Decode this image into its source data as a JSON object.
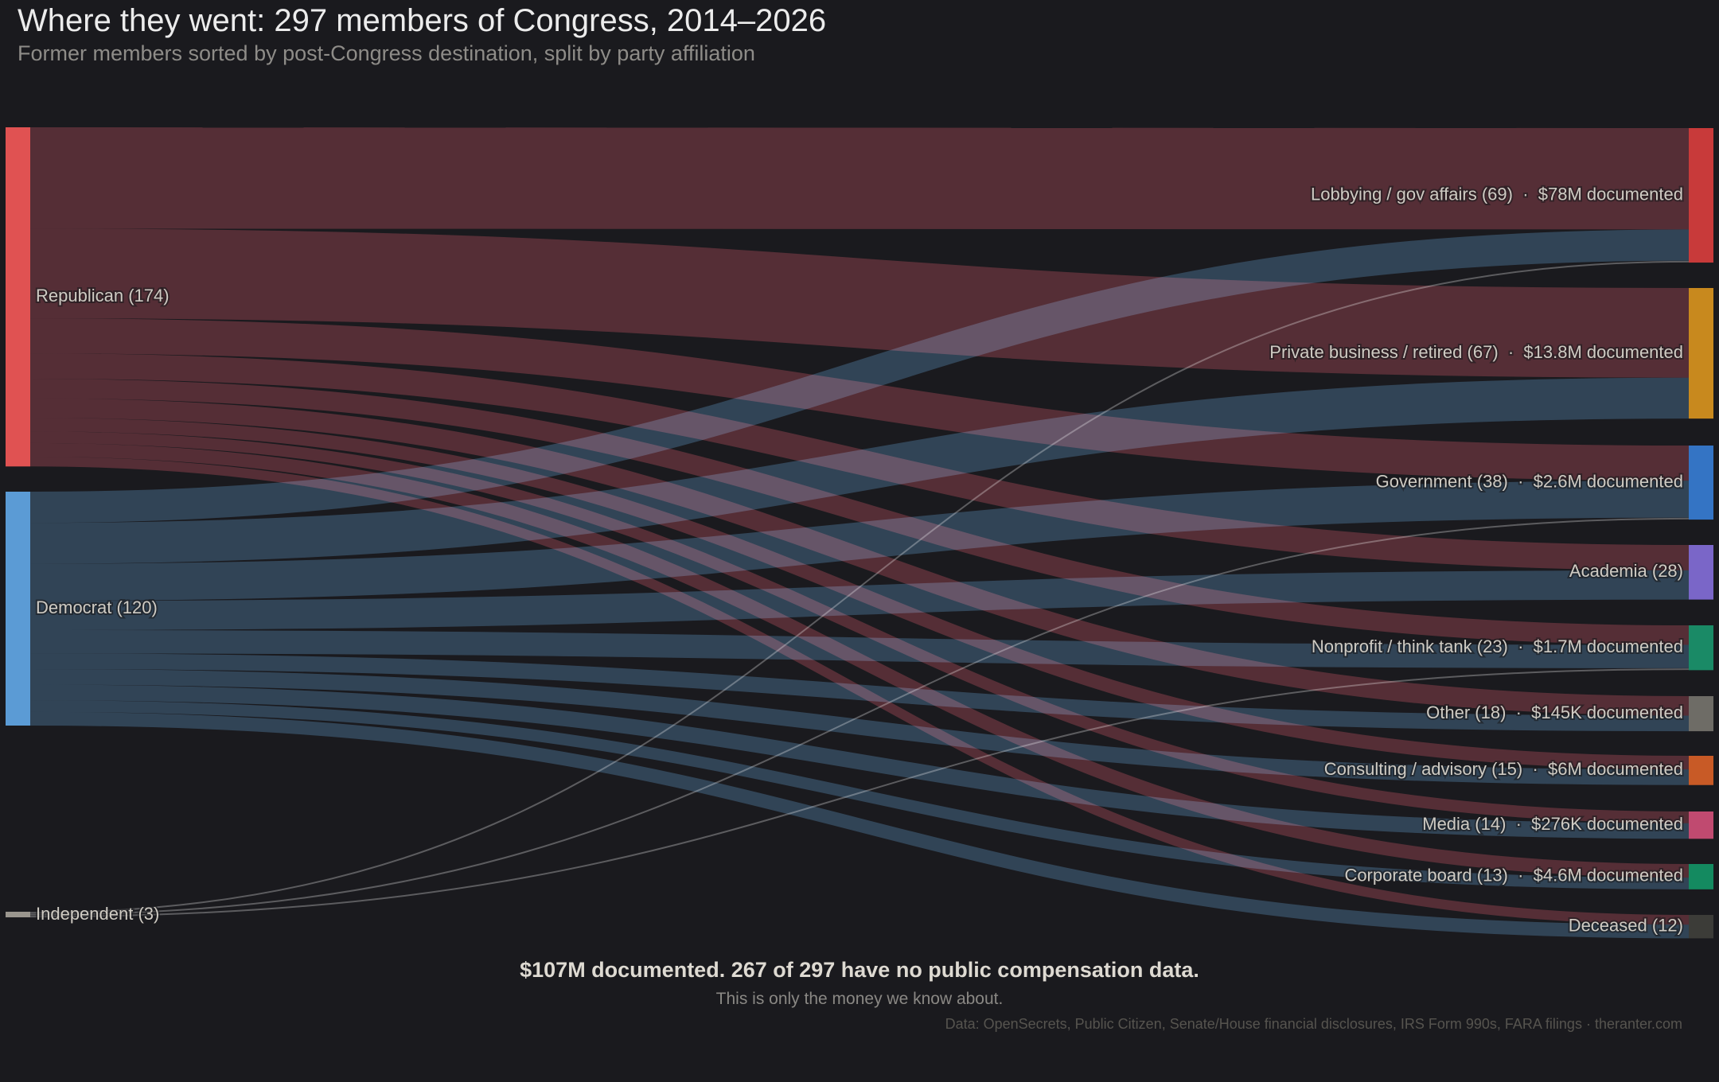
{
  "title": "Where they went: 297 members of Congress, 2014–2026",
  "subtitle": "Former members sorted by post-Congress destination, split by party affiliation",
  "footer": {
    "headline": "$107M documented. 267 of 297 have no public compensation data.",
    "note": "This is only the money we know about.",
    "source": "Data: OpenSecrets, Public Citizen, Senate/House financial disclosures, IRS Form 990s, FARA filings · theranter.com"
  },
  "chart_data": {
    "type": "sankey",
    "sources": [
      {
        "id": "R",
        "label": "Republican (174)",
        "count": 174,
        "color": "#e05252",
        "link_color": "#42161b"
      },
      {
        "id": "D",
        "label": "Democrat (120)",
        "count": 120,
        "color": "#5b9bd5",
        "link_color": "#1a2f40"
      },
      {
        "id": "I",
        "label": "Independent (3)",
        "count": 3,
        "color": "#9a968e",
        "link_color": "#4a4a4a"
      }
    ],
    "targets": [
      {
        "id": "lobbying",
        "label": "Lobbying / gov affairs (69)  ·  $78M documented",
        "count": 69,
        "color": "#c83a3a"
      },
      {
        "id": "private",
        "label": "Private business / retired (67)  ·  $13.8M documented",
        "count": 67,
        "color": "#c8891e"
      },
      {
        "id": "government",
        "label": "Government (38)  ·  $2.6M documented",
        "count": 38,
        "color": "#3474c4"
      },
      {
        "id": "academia",
        "label": "Academia (28)",
        "count": 28,
        "color": "#7a66c8"
      },
      {
        "id": "nonprofit",
        "label": "Nonprofit / think tank (23)  ·  $1.7M documented",
        "count": 23,
        "color": "#1a8a66"
      },
      {
        "id": "other",
        "label": "Other (18)  ·  $145K documented",
        "count": 18,
        "color": "#6e6c66"
      },
      {
        "id": "consulting",
        "label": "Consulting / advisory (15)  ·  $6M documented",
        "count": 15,
        "color": "#c85a26"
      },
      {
        "id": "media",
        "label": "Media (14)  ·  $276K documented",
        "count": 14,
        "color": "#c04a70"
      },
      {
        "id": "corporate",
        "label": "Corporate board (13)  ·  $4.6M documented",
        "count": 13,
        "color": "#148a60"
      },
      {
        "id": "deceased",
        "label": "Deceased (12)",
        "count": 12,
        "color": "#3c3c38"
      }
    ],
    "links": [
      {
        "source": "R",
        "target": "lobbying",
        "value": 52
      },
      {
        "source": "R",
        "target": "private",
        "value": 46
      },
      {
        "source": "R",
        "target": "government",
        "value": 18
      },
      {
        "source": "R",
        "target": "academia",
        "value": 13
      },
      {
        "source": "R",
        "target": "nonprofit",
        "value": 10
      },
      {
        "source": "R",
        "target": "other",
        "value": 10
      },
      {
        "source": "R",
        "target": "consulting",
        "value": 7
      },
      {
        "source": "R",
        "target": "media",
        "value": 6
      },
      {
        "source": "R",
        "target": "corporate",
        "value": 7
      },
      {
        "source": "R",
        "target": "deceased",
        "value": 5
      },
      {
        "source": "D",
        "target": "lobbying",
        "value": 16
      },
      {
        "source": "D",
        "target": "private",
        "value": 21
      },
      {
        "source": "D",
        "target": "government",
        "value": 19
      },
      {
        "source": "D",
        "target": "academia",
        "value": 15
      },
      {
        "source": "D",
        "target": "nonprofit",
        "value": 12
      },
      {
        "source": "D",
        "target": "other",
        "value": 8
      },
      {
        "source": "D",
        "target": "consulting",
        "value": 8
      },
      {
        "source": "D",
        "target": "media",
        "value": 8
      },
      {
        "source": "D",
        "target": "corporate",
        "value": 6
      },
      {
        "source": "D",
        "target": "deceased",
        "value": 7
      },
      {
        "source": "I",
        "target": "lobbying",
        "value": 1
      },
      {
        "source": "I",
        "target": "government",
        "value": 1
      },
      {
        "source": "I",
        "target": "nonprofit",
        "value": 1
      }
    ]
  }
}
